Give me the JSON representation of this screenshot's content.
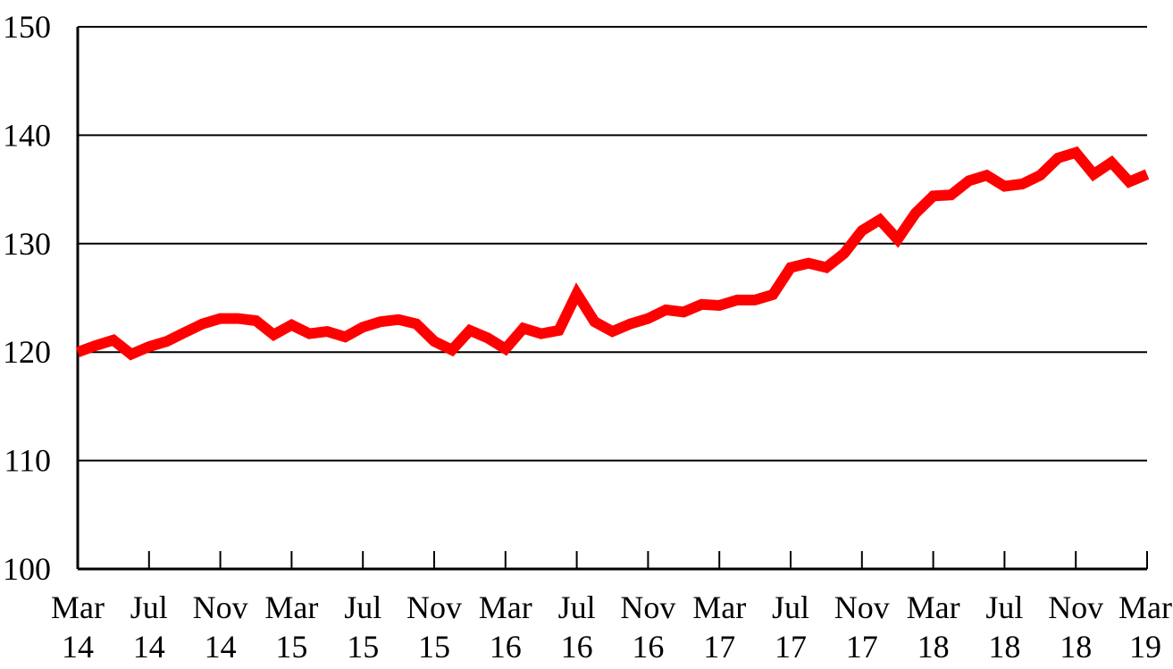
{
  "chart_data": {
    "type": "line",
    "title": "",
    "xlabel": "",
    "ylabel": "",
    "ylim": [
      100,
      150
    ],
    "yticks": [
      100,
      110,
      120,
      130,
      140,
      150
    ],
    "grid": "horizontal",
    "legend": "none",
    "line_color": "#ff0000",
    "x_tick_labels": [
      [
        "Mar",
        "14"
      ],
      [
        "Jul",
        "14"
      ],
      [
        "Nov",
        "14"
      ],
      [
        "Mar",
        "15"
      ],
      [
        "Jul",
        "15"
      ],
      [
        "Nov",
        "15"
      ],
      [
        "Mar",
        "16"
      ],
      [
        "Jul",
        "16"
      ],
      [
        "Nov",
        "16"
      ],
      [
        "Mar",
        "17"
      ],
      [
        "Jul",
        "17"
      ],
      [
        "Nov",
        "17"
      ],
      [
        "Mar",
        "18"
      ],
      [
        "Jul",
        "18"
      ],
      [
        "Nov",
        "18"
      ],
      [
        "Mar",
        "19"
      ]
    ],
    "x": [
      "2014-03",
      "2014-04",
      "2014-05",
      "2014-06",
      "2014-07",
      "2014-08",
      "2014-09",
      "2014-10",
      "2014-11",
      "2014-12",
      "2015-01",
      "2015-02",
      "2015-03",
      "2015-04",
      "2015-05",
      "2015-06",
      "2015-07",
      "2015-08",
      "2015-09",
      "2015-10",
      "2015-11",
      "2015-12",
      "2016-01",
      "2016-02",
      "2016-03",
      "2016-04",
      "2016-05",
      "2016-06",
      "2016-07",
      "2016-08",
      "2016-09",
      "2016-10",
      "2016-11",
      "2016-12",
      "2017-01",
      "2017-02",
      "2017-03",
      "2017-04",
      "2017-05",
      "2017-06",
      "2017-07",
      "2017-08",
      "2017-09",
      "2017-10",
      "2017-11",
      "2017-12",
      "2018-01",
      "2018-02",
      "2018-03",
      "2018-04",
      "2018-05",
      "2018-06",
      "2018-07",
      "2018-08",
      "2018-09",
      "2018-10",
      "2018-11",
      "2018-12",
      "2019-01",
      "2019-02",
      "2019-03"
    ],
    "series": [
      {
        "values": [
          120.0,
          120.6,
          121.1,
          119.8,
          120.5,
          121.0,
          121.8,
          122.6,
          123.1,
          123.1,
          122.9,
          121.6,
          122.5,
          121.7,
          121.9,
          121.4,
          122.3,
          122.8,
          123.0,
          122.6,
          121.0,
          120.2,
          122.0,
          121.3,
          120.3,
          122.2,
          121.7,
          122.0,
          125.4,
          122.8,
          121.9,
          122.6,
          123.1,
          123.9,
          123.7,
          124.4,
          124.3,
          124.8,
          124.8,
          125.3,
          127.8,
          128.2,
          127.8,
          129.1,
          131.2,
          132.2,
          130.4,
          132.8,
          134.4,
          134.5,
          135.8,
          136.3,
          135.3,
          135.5,
          136.3,
          137.9,
          138.4,
          136.4,
          137.5,
          135.7,
          136.4
        ]
      }
    ]
  }
}
